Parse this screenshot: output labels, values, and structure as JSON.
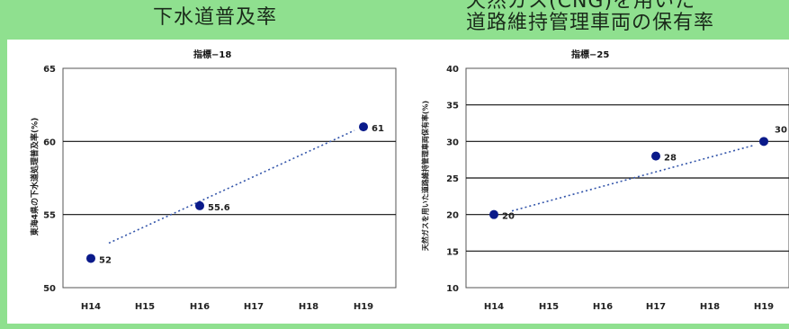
{
  "header": {
    "left_title": "下水道普及率",
    "right_title_line1": "天然ガス(CNG)を用いた",
    "right_title_line2": "道路維持管理車両の保有率"
  },
  "colors": {
    "background": "#8fe08f",
    "point": "#0a1a8a",
    "trend": "#3355aa"
  },
  "chart_data": [
    {
      "type": "scatter",
      "title": "指標−18",
      "ylabel": "東海4県の下水道処理普及率(%)",
      "xlabel": "",
      "categories": [
        "H14",
        "H15",
        "H16",
        "H17",
        "H18",
        "H19"
      ],
      "yticks": [
        50,
        55,
        60,
        65
      ],
      "ylim": [
        50,
        65
      ],
      "gridlines": [
        55,
        60
      ],
      "points": [
        {
          "x": "H14",
          "y": 52,
          "label": "52"
        },
        {
          "x": "H16",
          "y": 55.6,
          "label": "55.6"
        },
        {
          "x": "H19",
          "y": 61,
          "label": "61"
        }
      ],
      "trendline": {
        "style": "dotted",
        "from": {
          "x": "H14",
          "y": 52.8
        },
        "to": {
          "x": "H19",
          "y": 61
        }
      }
    },
    {
      "type": "scatter",
      "title": "指標−25",
      "ylabel": "天然ガスを用いた道路維持管理車両保有率(%)",
      "xlabel": "",
      "categories": [
        "H14",
        "H15",
        "H16",
        "H17",
        "H18",
        "H19"
      ],
      "yticks": [
        10,
        15,
        20,
        25,
        30,
        35,
        40
      ],
      "ylim": [
        10,
        40
      ],
      "gridlines": [
        15,
        20,
        25,
        30,
        35
      ],
      "points": [
        {
          "x": "H14",
          "y": 20,
          "label": "20"
        },
        {
          "x": "H17",
          "y": 28,
          "label": "28"
        },
        {
          "x": "H19",
          "y": 30,
          "label": "30"
        }
      ],
      "trendline": {
        "style": "dotted",
        "from": {
          "x": "H14",
          "y": 20
        },
        "to": {
          "x": "H19",
          "y": 30
        }
      }
    }
  ]
}
